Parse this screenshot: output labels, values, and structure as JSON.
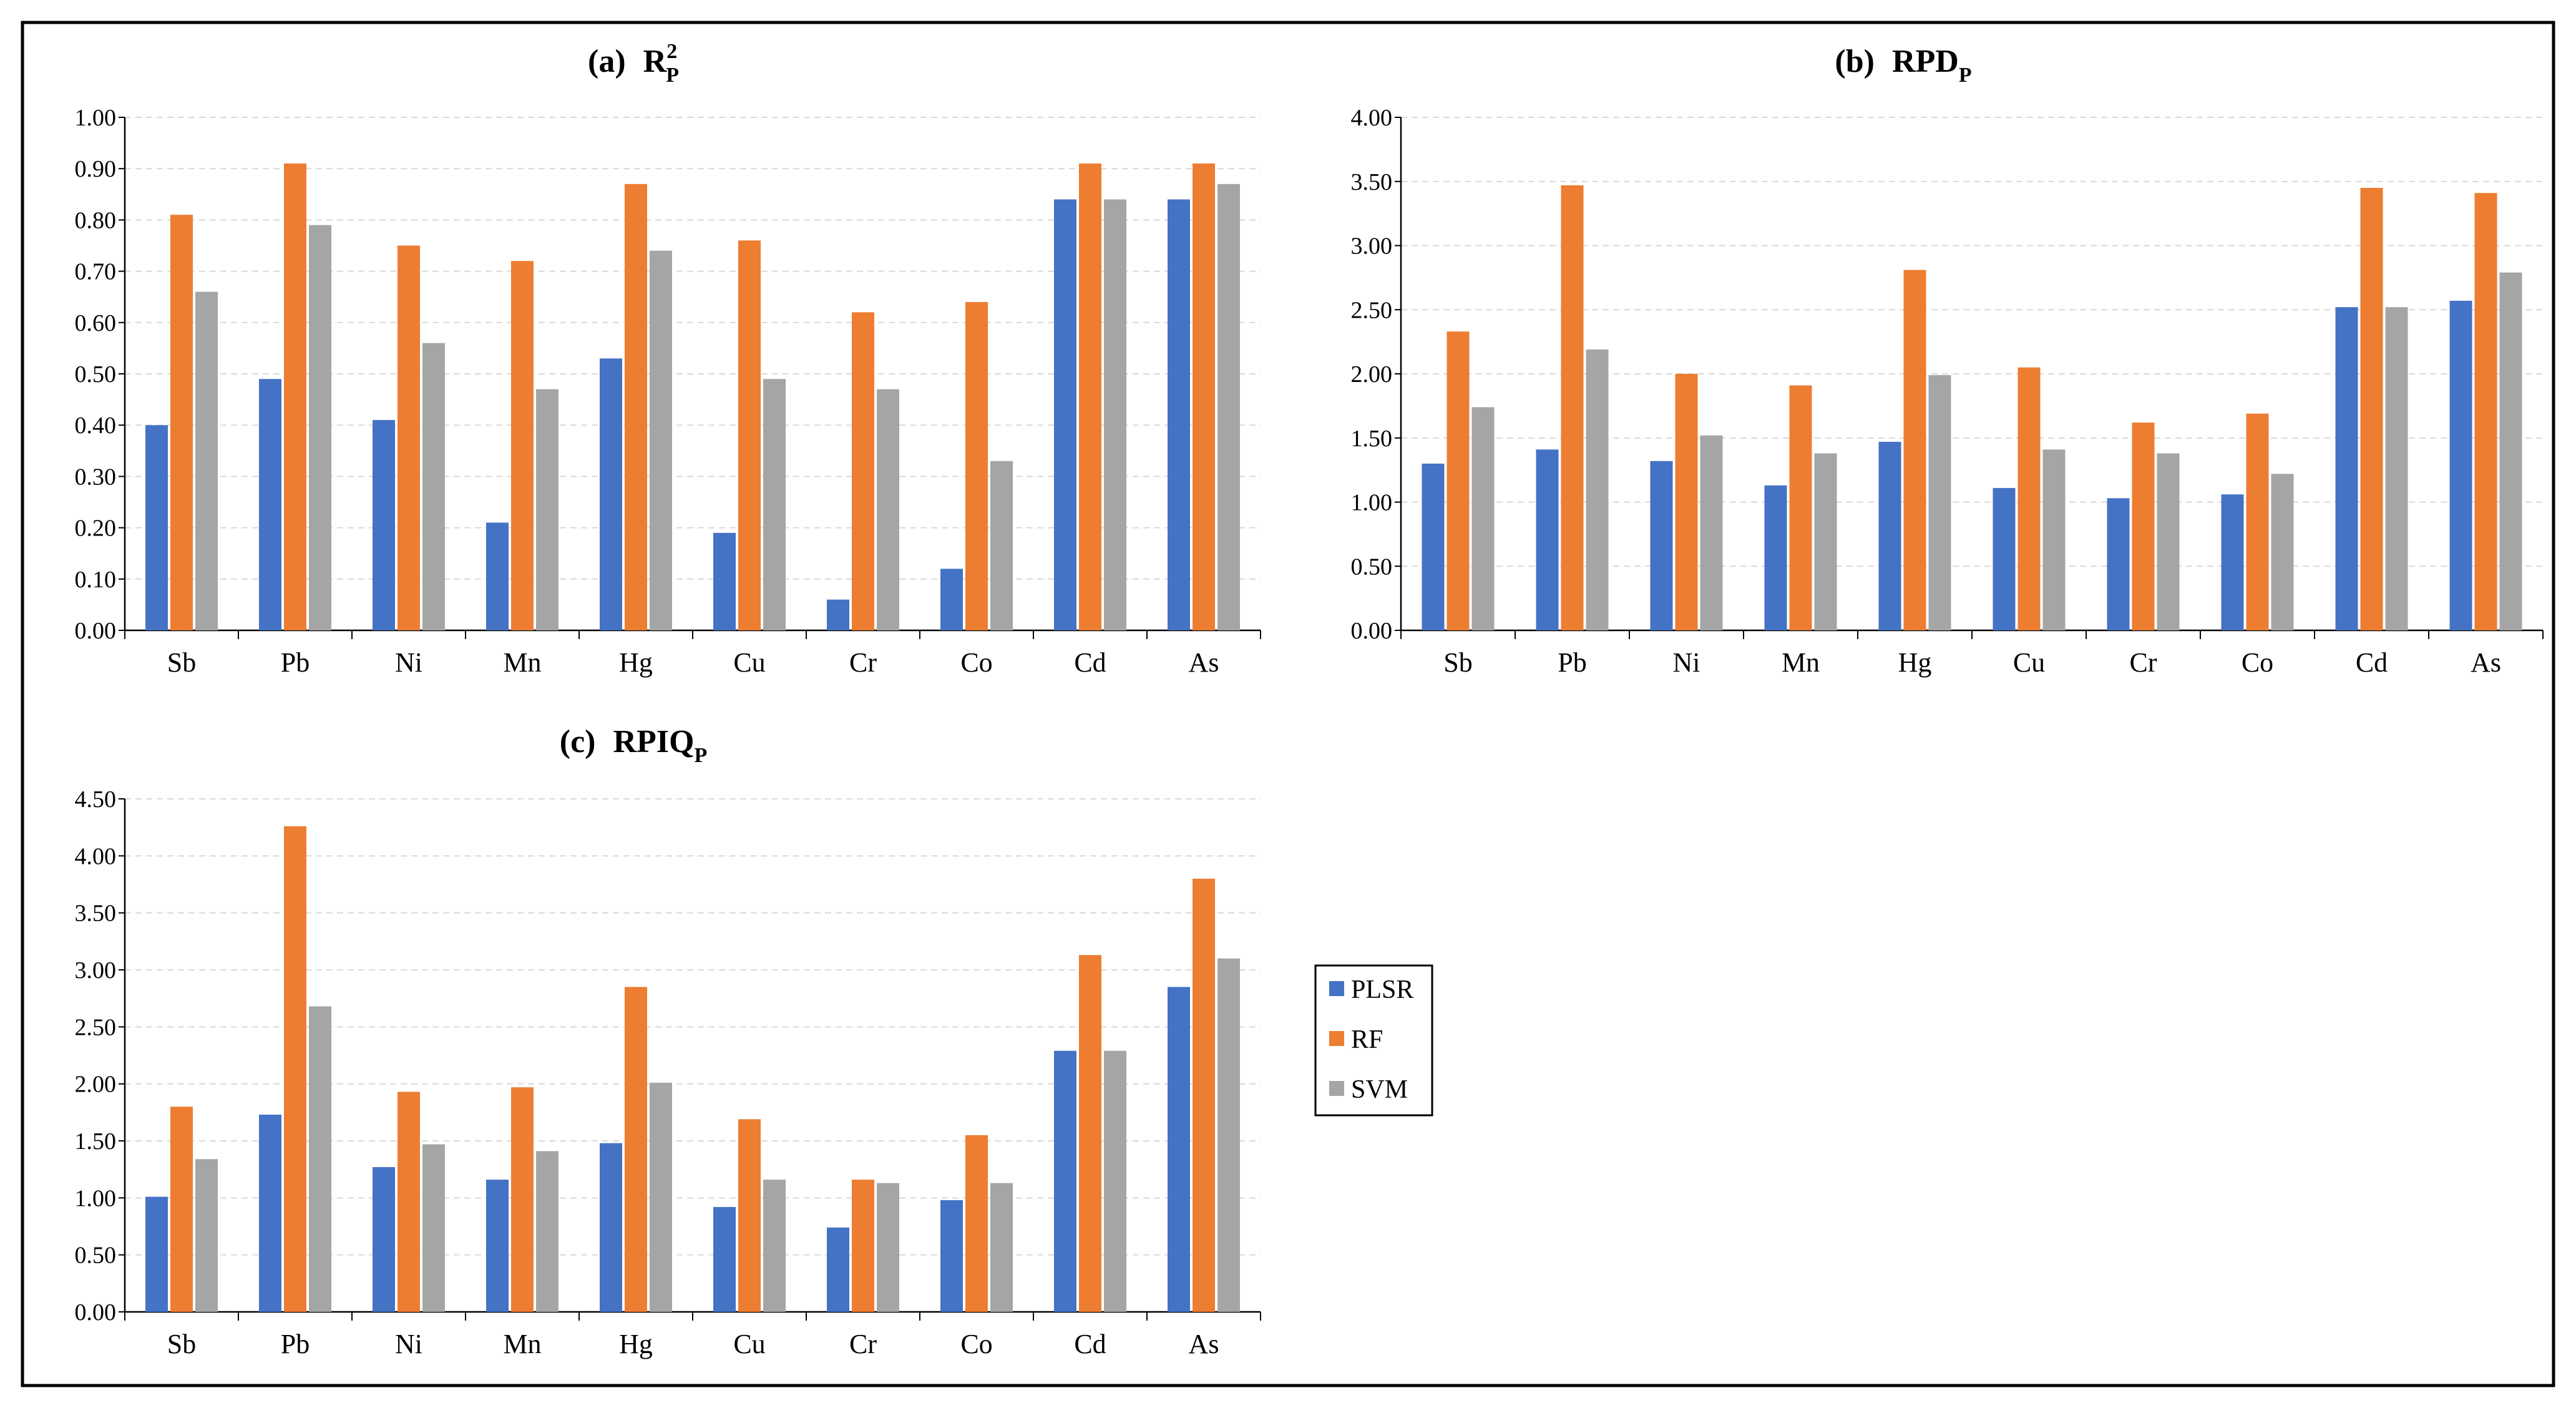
{
  "figure": {
    "background": "#ffffff",
    "frame_color": "#000000",
    "grid_color": "#d9d9d9",
    "axis_color": "#000000"
  },
  "legend": {
    "items": [
      {
        "name": "PLSR",
        "color": "#4472C4"
      },
      {
        "name": "RF",
        "color": "#ED7D31"
      },
      {
        "name": "SVM",
        "color": "#A5A5A5"
      }
    ]
  },
  "chart_data": [
    {
      "type": "bar",
      "panel_id": "a",
      "title": {
        "prefix": "(a)",
        "main": "R",
        "sup": "2",
        "sub": "P"
      },
      "categories": [
        "Sb",
        "Pb",
        "Ni",
        "Mn",
        "Hg",
        "Cu",
        "Cr",
        "Co",
        "Cd",
        "As"
      ],
      "ylim": [
        0,
        1.0
      ],
      "yticks": [
        "0.00",
        "0.10",
        "0.20",
        "0.30",
        "0.40",
        "0.50",
        "0.60",
        "0.70",
        "0.80",
        "0.90",
        "1.00"
      ],
      "ytick_values": [
        0,
        0.1,
        0.2,
        0.3,
        0.4,
        0.5,
        0.6,
        0.7,
        0.8,
        0.9,
        1.0
      ],
      "grid": true,
      "series": [
        {
          "name": "PLSR",
          "values": [
            0.4,
            0.49,
            0.41,
            0.21,
            0.53,
            0.19,
            0.06,
            0.12,
            0.84,
            0.84
          ]
        },
        {
          "name": "RF",
          "values": [
            0.81,
            0.91,
            0.75,
            0.72,
            0.87,
            0.76,
            0.62,
            0.64,
            0.91,
            0.91
          ]
        },
        {
          "name": "SVM",
          "values": [
            0.66,
            0.79,
            0.56,
            0.47,
            0.74,
            0.49,
            0.47,
            0.33,
            0.84,
            0.87
          ]
        }
      ]
    },
    {
      "type": "bar",
      "panel_id": "b",
      "title": {
        "prefix": "(b)",
        "main": "RPD",
        "sup": "",
        "sub": "P"
      },
      "categories": [
        "Sb",
        "Pb",
        "Ni",
        "Mn",
        "Hg",
        "Cu",
        "Cr",
        "Co",
        "Cd",
        "As"
      ],
      "ylim": [
        0,
        4.0
      ],
      "yticks": [
        "0.00",
        "0.50",
        "1.00",
        "1.50",
        "2.00",
        "2.50",
        "3.00",
        "3.50",
        "4.00"
      ],
      "ytick_values": [
        0,
        0.5,
        1.0,
        1.5,
        2.0,
        2.5,
        3.0,
        3.5,
        4.0
      ],
      "grid": true,
      "series": [
        {
          "name": "PLSR",
          "values": [
            1.3,
            1.41,
            1.32,
            1.13,
            1.47,
            1.11,
            1.03,
            1.06,
            2.52,
            2.57
          ]
        },
        {
          "name": "RF",
          "values": [
            2.33,
            3.47,
            2.0,
            1.91,
            2.81,
            2.05,
            1.62,
            1.69,
            3.45,
            3.41
          ]
        },
        {
          "name": "SVM",
          "values": [
            1.74,
            2.19,
            1.52,
            1.38,
            1.99,
            1.41,
            1.38,
            1.22,
            2.52,
            2.79
          ]
        }
      ]
    },
    {
      "type": "bar",
      "panel_id": "c",
      "title": {
        "prefix": "(c)",
        "main": "RPIQ",
        "sup": "",
        "sub": "P"
      },
      "categories": [
        "Sb",
        "Pb",
        "Ni",
        "Mn",
        "Hg",
        "Cu",
        "Cr",
        "Co",
        "Cd",
        "As"
      ],
      "ylim": [
        0,
        4.5
      ],
      "yticks": [
        "0.00",
        "0.50",
        "1.00",
        "1.50",
        "2.00",
        "2.50",
        "3.00",
        "3.50",
        "4.00",
        "4.50"
      ],
      "ytick_values": [
        0,
        0.5,
        1.0,
        1.5,
        2.0,
        2.5,
        3.0,
        3.5,
        4.0,
        4.5
      ],
      "grid": true,
      "series": [
        {
          "name": "PLSR",
          "values": [
            1.01,
            1.73,
            1.27,
            1.16,
            1.48,
            0.92,
            0.74,
            0.98,
            2.29,
            2.85
          ]
        },
        {
          "name": "RF",
          "values": [
            1.8,
            4.26,
            1.93,
            1.97,
            2.85,
            1.69,
            1.16,
            1.55,
            3.13,
            3.8
          ]
        },
        {
          "name": "SVM",
          "values": [
            1.34,
            2.68,
            1.47,
            1.41,
            2.01,
            1.16,
            1.13,
            1.13,
            2.29,
            3.1
          ]
        }
      ]
    }
  ]
}
